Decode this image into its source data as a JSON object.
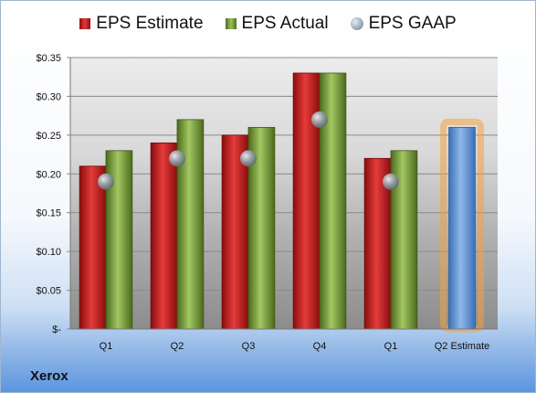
{
  "chart_data": {
    "type": "bar",
    "categories": [
      "Q1",
      "Q2",
      "Q3",
      "Q4",
      "Q1",
      "Q2 Estimate"
    ],
    "series": [
      {
        "name": "EPS Estimate",
        "values": [
          0.21,
          0.24,
          0.25,
          0.33,
          0.22,
          null
        ],
        "color": "#c8191b"
      },
      {
        "name": "EPS Actual",
        "values": [
          0.23,
          0.27,
          0.26,
          0.33,
          0.23,
          null
        ],
        "color": "#7f9f3a"
      },
      {
        "name": "EPS GAAP",
        "values": [
          0.19,
          0.22,
          0.22,
          0.27,
          0.19,
          null
        ],
        "color": "#9aa7b5",
        "marker": "sphere"
      }
    ],
    "estimate": {
      "category": "Q2 Estimate",
      "value": 0.26,
      "color": "#5f95d6",
      "glow_color": "#f3a23c"
    },
    "yticks": [
      "$-",
      "$0.05",
      "$0.10",
      "$0.15",
      "$0.20",
      "$0.25",
      "$0.30",
      "$0.35"
    ],
    "ylim": [
      0,
      0.35
    ],
    "grid": true,
    "legend_position": "top"
  },
  "legend": {
    "estimate_label": "EPS Estimate",
    "actual_label": "EPS Actual",
    "gaap_label": "EPS GAAP"
  },
  "company": "Xerox"
}
